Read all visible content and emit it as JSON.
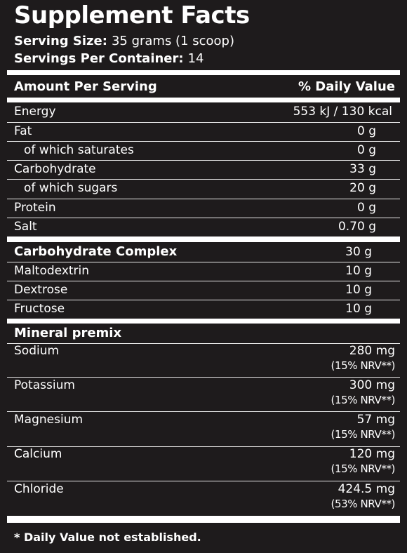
{
  "title": "Supplement Facts",
  "serving_size_label": "Serving Size:",
  "serving_size_value": "35 grams (1 scoop)",
  "servings_per_container_label": "Servings Per Container:",
  "servings_per_container_value": "14",
  "header": {
    "left": "Amount Per Serving",
    "right": "% Daily Value"
  },
  "nutrients": [
    {
      "label": "Energy",
      "amount": "553 kJ / 130 kcal"
    },
    {
      "label": "Fat",
      "amount": "0 g"
    },
    {
      "label": "of which saturates",
      "amount": "0 g"
    },
    {
      "label": "Carbohydrate",
      "amount": "33 g"
    },
    {
      "label": "of which sugars",
      "amount": "20 g"
    },
    {
      "label": "Protein",
      "amount": "0 g"
    },
    {
      "label": "Salt",
      "amount": "0.70 g"
    }
  ],
  "carb_complex": {
    "label": "Carbohydrate Complex",
    "amount": "30 g",
    "items": [
      {
        "label": "Maltodextrin",
        "amount": "10 g"
      },
      {
        "label": "Dextrose",
        "amount": "10 g"
      },
      {
        "label": "Fructose",
        "amount": "10 g"
      }
    ]
  },
  "mineral_premix": {
    "label": "Mineral premix",
    "items": [
      {
        "label": "Sodium",
        "amount": "280 mg",
        "nrv": "(15% NRV**)"
      },
      {
        "label": "Potassium",
        "amount": "300 mg",
        "nrv": "(15% NRV**)"
      },
      {
        "label": "Magnesium",
        "amount": "57 mg",
        "nrv": "(15% NRV**)"
      },
      {
        "label": "Calcium",
        "amount": "120 mg",
        "nrv": "(15% NRV**)"
      },
      {
        "label": "Chloride",
        "amount": "424.5 mg",
        "nrv": "(53% NRV**)"
      }
    ]
  },
  "footnote": "* Daily Value not established."
}
